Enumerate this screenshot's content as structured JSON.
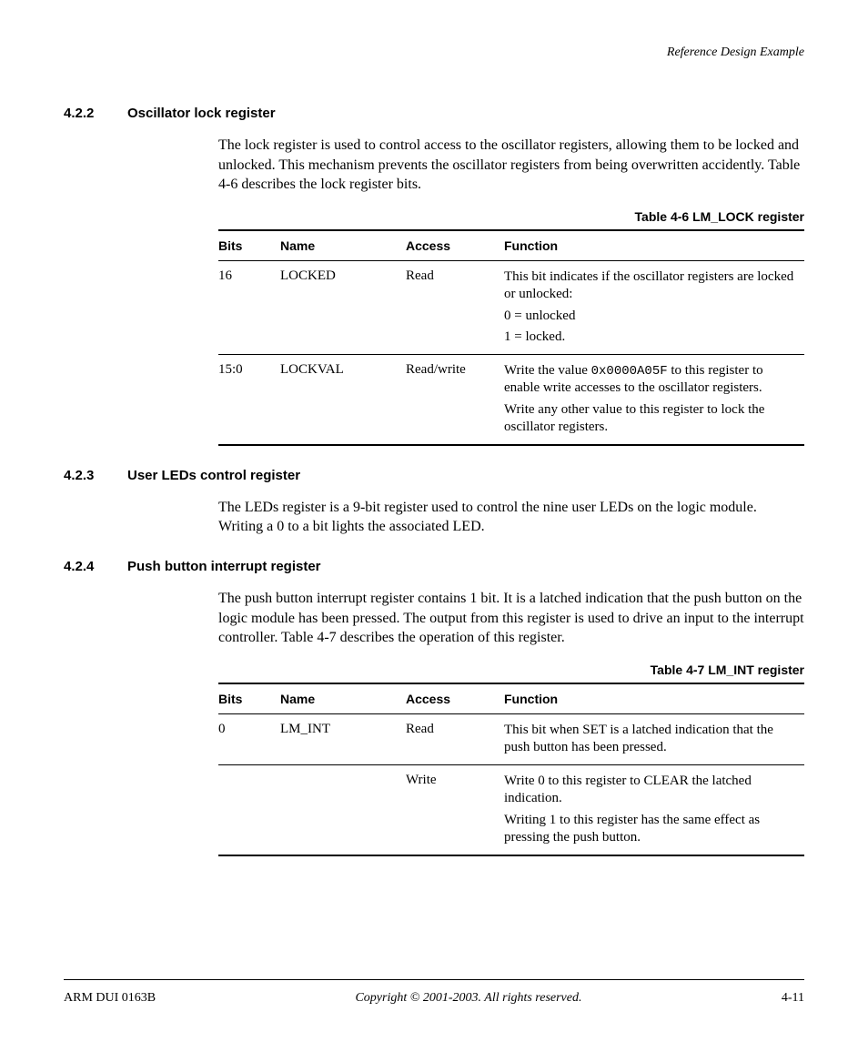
{
  "runningHeader": "Reference Design Example",
  "sections": {
    "s422": {
      "num": "4.2.2",
      "title": "Oscillator lock register",
      "para": "The lock register is used to control access to the oscillator registers, allowing them to be locked and unlocked. This mechanism prevents the oscillator registers from being overwritten accidently. Table 4-6 describes the lock register bits."
    },
    "s423": {
      "num": "4.2.3",
      "title": "User LEDs control register",
      "para": "The LEDs register is a 9-bit register used to control the nine user LEDs on the logic module. Writing a 0 to a bit lights the associated LED."
    },
    "s424": {
      "num": "4.2.4",
      "title": "Push button interrupt register",
      "para": "The push button interrupt register contains 1 bit. It is a latched indication that the push button on the logic module has been pressed. The output from this register is used to drive an input to the interrupt controller. Table 4-7 describes the operation of this register."
    }
  },
  "table46": {
    "caption": "Table 4-6 LM_LOCK register",
    "headers": {
      "bits": "Bits",
      "name": "Name",
      "access": "Access",
      "function": "Function"
    },
    "rows": [
      {
        "bits": "16",
        "name": "LOCKED",
        "access": "Read",
        "fn": {
          "p1": "This bit indicates if the oscillator registers are locked or unlocked:",
          "p2": "0 = unlocked",
          "p3": "1 = locked."
        }
      },
      {
        "bits": "15:0",
        "name": "LOCKVAL",
        "access": "Read/write",
        "fn": {
          "p1a": "Write the value ",
          "code": "0x0000A05F",
          "p1b": " to this register to enable write accesses to the oscillator registers.",
          "p2": "Write any other value to this register to lock the oscillator registers."
        }
      }
    ]
  },
  "table47": {
    "caption": "Table 4-7 LM_INT register",
    "headers": {
      "bits": "Bits",
      "name": "Name",
      "access": "Access",
      "function": "Function"
    },
    "rows": [
      {
        "bits": "0",
        "name": "LM_INT",
        "access": "Read",
        "fn": {
          "p1": "This bit when SET is a latched indication that the push button has been pressed."
        }
      },
      {
        "bits": "",
        "name": "",
        "access": "Write",
        "fn": {
          "p1": "Write 0 to this register to CLEAR the latched indication.",
          "p2": "Writing 1 to this register has the same effect as pressing the push button."
        }
      }
    ]
  },
  "footer": {
    "left": "ARM DUI 0163B",
    "center": "Copyright © 2001-2003. All rights reserved.",
    "right": "4-11"
  }
}
